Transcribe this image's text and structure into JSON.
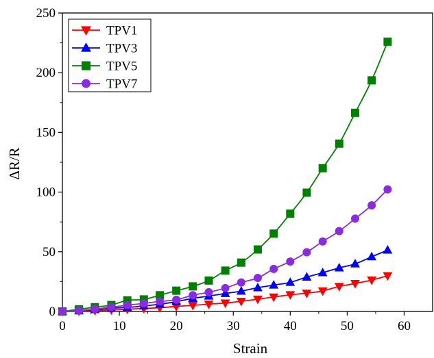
{
  "chart_data": {
    "type": "line",
    "title": "",
    "xlabel": "Strain",
    "ylabel": "ΔR/R",
    "xlim": [
      0,
      65
    ],
    "ylim": [
      0,
      250
    ],
    "xticks": [
      0,
      10,
      20,
      30,
      40,
      50,
      60
    ],
    "yticks": [
      0,
      50,
      100,
      150,
      200,
      250
    ],
    "grid": false,
    "legend_position": "top-left",
    "series": [
      {
        "name": "TPV1",
        "color": "#ff0000",
        "marker": "triangle-down",
        "x": [
          0,
          2.9,
          5.7,
          8.6,
          11.4,
          14.3,
          17.1,
          20,
          22.9,
          25.7,
          28.6,
          31.4,
          34.3,
          37.1,
          40,
          42.9,
          45.7,
          48.6,
          51.4,
          54.3,
          57.1
        ],
        "y": [
          0,
          0.3,
          0.8,
          1.3,
          1.9,
          2.5,
          3.2,
          4.2,
          5.1,
          6.1,
          7.1,
          8.5,
          10.3,
          12.1,
          14.0,
          15.3,
          17.2,
          21.0,
          23.4,
          26.3,
          29.9
        ]
      },
      {
        "name": "TPV3",
        "color": "#0000ff",
        "marker": "triangle-up",
        "x": [
          0,
          2.9,
          5.7,
          8.6,
          11.4,
          14.3,
          17.1,
          20,
          22.9,
          25.7,
          28.6,
          31.4,
          34.3,
          37.1,
          40,
          42.9,
          45.7,
          48.6,
          51.4,
          54.3,
          57.1
        ],
        "y": [
          0,
          0.5,
          1.5,
          2.7,
          3.4,
          4.6,
          6.1,
          8.2,
          11.0,
          12.9,
          15.1,
          17.0,
          19.9,
          22.1,
          24.4,
          28.8,
          32.5,
          36.5,
          39.9,
          45.8,
          51.4
        ]
      },
      {
        "name": "TPV5",
        "color": "#008000",
        "marker": "square",
        "x": [
          0,
          2.9,
          5.7,
          8.6,
          11.4,
          14.3,
          17.1,
          20,
          22.9,
          25.7,
          28.6,
          31.4,
          34.3,
          37.1,
          40,
          42.9,
          45.7,
          48.6,
          51.4,
          54.3,
          57.1
        ],
        "y": [
          0,
          1.8,
          3.6,
          5.4,
          9.3,
          10.1,
          13.6,
          17.4,
          21.0,
          25.9,
          34.2,
          40.9,
          51.9,
          65.2,
          81.9,
          99.5,
          120.0,
          140.6,
          166.4,
          193.6,
          226.0
        ]
      },
      {
        "name": "TPV7",
        "color": "#8a2be2",
        "marker": "circle",
        "x": [
          0,
          2.9,
          5.7,
          8.6,
          11.4,
          14.3,
          17.1,
          20,
          22.9,
          25.7,
          28.6,
          31.4,
          34.3,
          37.1,
          40,
          42.9,
          45.7,
          48.6,
          51.4,
          54.3,
          57.1
        ],
        "y": [
          0,
          0.8,
          2.0,
          3.7,
          5.2,
          6.8,
          8.4,
          9.8,
          13.6,
          16.1,
          19.6,
          24.3,
          28.1,
          35.6,
          41.8,
          49.6,
          58.6,
          67.3,
          77.8,
          88.9,
          102.3
        ]
      }
    ]
  }
}
